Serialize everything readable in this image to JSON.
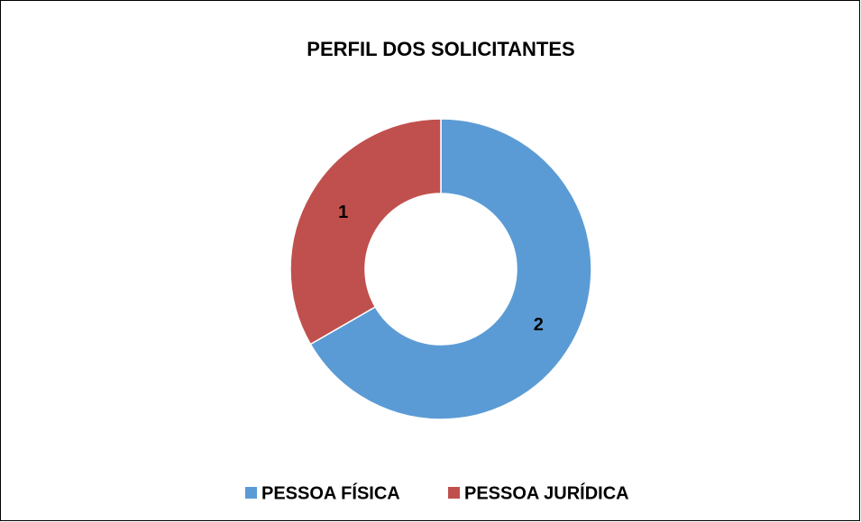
{
  "chart_data": {
    "type": "donut",
    "title": "PERFIL DOS SOLICITANTES",
    "categories": [
      "PESSOA FÍSICA",
      "PESSOA JURÍDICA"
    ],
    "values": [
      2,
      1
    ],
    "colors": [
      "#5b9bd5",
      "#c0504d"
    ],
    "legend": "bottom"
  }
}
